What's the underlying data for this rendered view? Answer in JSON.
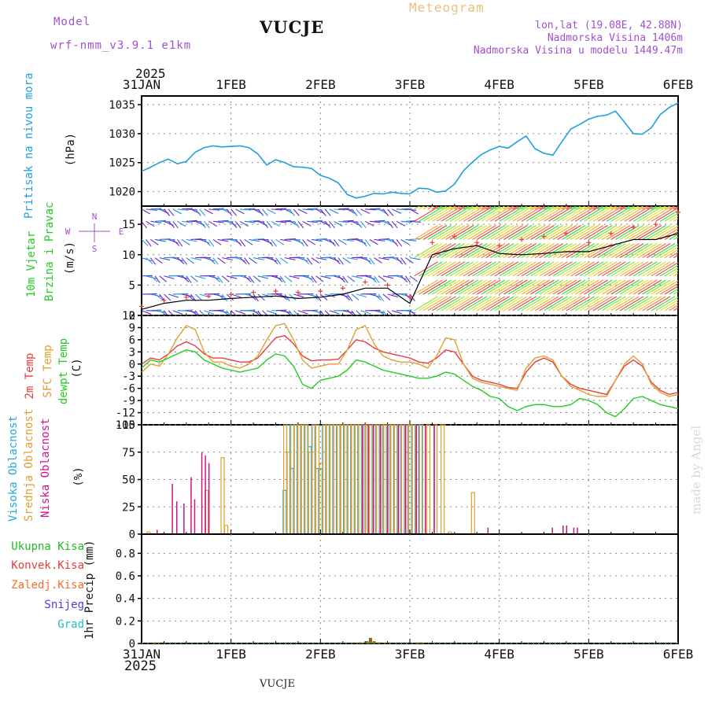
{
  "header": {
    "model_label": "Model",
    "model_name": "wrf-nmm_v3.9.1  e1km",
    "station": "VUCJE",
    "title": "Meteogram",
    "lonlat": "lon,lat (19.08E, 42.88N)",
    "altitude": "Nadmorska Visina 1406m",
    "model_altitude": "Nadmorska Visina u modelu 1449.47m",
    "year": "2025",
    "footer_station": "VUCJE",
    "watermark": "made by Angel"
  },
  "colors": {
    "pressure": "#1ea0e0",
    "t2m": "#e83c3c",
    "sfc": "#e0a030",
    "dew": "#22cc22",
    "high_cloud": "#22aadd",
    "mid_cloud": "#e0a030",
    "low_cloud": "#cc1488",
    "total_rain": "#22bb22",
    "conv_rain": "#e83c3c",
    "frz_rain": "#f07030",
    "snow": "#4444dd",
    "hail": "#22bbbb",
    "model": "#a050d0"
  },
  "time_axis": {
    "ticks": [
      "31JAN",
      "1FEB",
      "2FEB",
      "3FEB",
      "4FEB",
      "5FEB",
      "6FEB"
    ]
  },
  "chart_data": [
    {
      "type": "line",
      "panel": "pressure",
      "ylabel_lines": [
        "Pritisak na nivou mora"
      ],
      "unit": "(hPa)",
      "ylim": [
        1017.5,
        1036.5
      ],
      "yticks": [
        1020,
        1025,
        1030,
        1035
      ],
      "grid": true,
      "x": [
        0,
        0.1,
        0.2,
        0.3,
        0.4,
        0.5,
        0.6,
        0.7,
        0.8,
        0.9,
        1,
        1.1,
        1.2,
        1.3,
        1.4,
        1.5,
        1.6,
        1.7,
        1.8,
        1.9,
        2,
        2.1,
        2.2,
        2.3,
        2.4,
        2.5,
        2.6,
        2.7,
        2.8,
        2.9,
        3,
        3.1,
        3.2,
        3.3,
        3.4,
        3.5,
        3.6,
        3.7,
        3.8,
        3.9,
        4,
        4.1,
        4.2,
        4.3,
        4.4,
        4.5,
        4.6,
        4.7,
        4.8,
        4.9,
        5,
        5.1,
        5.2,
        5.3,
        5.4,
        5.5,
        5.6,
        5.7,
        5.8,
        5.9,
        6
      ],
      "series": [
        {
          "name": "Pritisak na nivou mora",
          "values": [
            1023.5,
            1024.2,
            1025.0,
            1025.6,
            1024.8,
            1025.2,
            1026.8,
            1027.6,
            1027.9,
            1027.7,
            1027.8,
            1027.9,
            1027.6,
            1026.5,
            1024.6,
            1025.5,
            1025.0,
            1024.3,
            1024.2,
            1024.0,
            1022.8,
            1022.3,
            1021.5,
            1019.5,
            1018.9,
            1019.2,
            1019.7,
            1019.6,
            1019.9,
            1019.7,
            1019.6,
            1020.6,
            1020.5,
            1019.9,
            1020.1,
            1021.3,
            1023.6,
            1025.1,
            1026.4,
            1027.2,
            1027.8,
            1027.5,
            1028.6,
            1029.6,
            1027.4,
            1026.6,
            1026.3,
            1028.6,
            1030.8,
            1031.6,
            1032.5,
            1033.0,
            1033.2,
            1033.9,
            1032.0,
            1030.0,
            1029.9,
            1031.0,
            1033.3,
            1034.5,
            1035.3
          ]
        }
      ]
    },
    {
      "type": "scatter",
      "panel": "wind",
      "ylabel_lines": [
        "10m Vjetar",
        "Brzina i Pravac"
      ],
      "unit": "(m/s)",
      "compass": [
        "N",
        "E",
        "S",
        "W"
      ],
      "ylim": [
        0,
        18
      ],
      "yticks": [
        0,
        5,
        10,
        15
      ],
      "grid": true,
      "x": [
        0,
        0.25,
        0.5,
        0.75,
        1,
        1.25,
        1.5,
        1.75,
        2,
        2.25,
        2.5,
        2.75,
        3,
        3.25,
        3.5,
        3.75,
        4,
        4.25,
        4.5,
        4.75,
        5,
        5.25,
        5.5,
        5.75,
        6
      ],
      "series": [
        {
          "name": "Brzina",
          "values": [
            1.0,
            2.0,
            2.5,
            2.5,
            2.8,
            3.0,
            3.2,
            2.8,
            3.0,
            3.5,
            4.5,
            4.5,
            2.0,
            10.0,
            11.0,
            11.5,
            10.2,
            10.0,
            10.2,
            10.5,
            10.5,
            11.5,
            12.5,
            12.5,
            13.5
          ]
        },
        {
          "name": "Udari",
          "values": [
            1.5,
            2.5,
            3.0,
            3.2,
            3.5,
            3.8,
            4.0,
            3.8,
            4.0,
            4.5,
            5.5,
            5.0,
            3.0,
            12.0,
            13.0,
            12.0,
            11.5,
            12.5,
            13.0,
            13.5,
            12.0,
            13.5,
            14.5,
            15.0,
            17.0
          ]
        }
      ]
    },
    {
      "type": "line",
      "panel": "temperature",
      "ylabel_lines": [
        "2m Temp",
        "SFC Temp",
        "dewpt Temp"
      ],
      "unit": "(C)",
      "ylim": [
        -15,
        12
      ],
      "yticks": [
        -15,
        -12,
        -9,
        -6,
        -3,
        0,
        3,
        6,
        9,
        12
      ],
      "grid": true,
      "x": [
        0,
        0.1,
        0.2,
        0.3,
        0.4,
        0.5,
        0.6,
        0.7,
        0.8,
        0.9,
        1,
        1.1,
        1.2,
        1.3,
        1.4,
        1.5,
        1.6,
        1.7,
        1.8,
        1.9,
        2,
        2.1,
        2.2,
        2.3,
        2.4,
        2.5,
        2.6,
        2.7,
        2.8,
        2.9,
        3,
        3.1,
        3.2,
        3.3,
        3.4,
        3.5,
        3.6,
        3.7,
        3.8,
        3.9,
        4,
        4.1,
        4.2,
        4.3,
        4.4,
        4.5,
        4.6,
        4.7,
        4.8,
        4.9,
        5,
        5.1,
        5.2,
        5.3,
        5.4,
        5.5,
        5.6,
        5.7,
        5.8,
        5.9,
        6
      ],
      "series": [
        {
          "name": "2m Temp",
          "values": [
            0.0,
            1.5,
            1.0,
            2.5,
            4.5,
            5.5,
            4.5,
            2.5,
            1.5,
            1.5,
            1.0,
            0.5,
            0.5,
            1.5,
            4.0,
            6.5,
            7.0,
            5.0,
            2.0,
            0.8,
            1.0,
            1.0,
            1.2,
            3.5,
            6.0,
            5.5,
            4.0,
            3.0,
            2.5,
            2.0,
            1.5,
            0.5,
            0.2,
            1.5,
            3.5,
            3.0,
            0.0,
            -3.0,
            -4.0,
            -4.5,
            -5.0,
            -5.8,
            -6.0,
            -2.0,
            0.5,
            1.5,
            0.5,
            -3.0,
            -5.0,
            -6.0,
            -6.5,
            -7.0,
            -7.5,
            -4.0,
            -0.5,
            1.0,
            -0.5,
            -4.5,
            -6.5,
            -7.5,
            -7.0
          ]
        },
        {
          "name": "SFC Temp",
          "values": [
            -2.0,
            0.0,
            -0.5,
            2.5,
            6.5,
            9.5,
            8.5,
            3.0,
            0.5,
            0.5,
            -0.5,
            -1.0,
            0.0,
            2.0,
            6.0,
            9.5,
            10.0,
            6.0,
            1.0,
            -1.0,
            -0.5,
            0.0,
            0.0,
            3.5,
            8.5,
            9.5,
            5.0,
            2.0,
            1.0,
            0.5,
            0.5,
            0.0,
            -1.0,
            2.0,
            6.5,
            6.0,
            0.0,
            -3.5,
            -4.5,
            -5.0,
            -5.5,
            -6.0,
            -6.5,
            -1.0,
            1.5,
            2.0,
            1.0,
            -3.0,
            -5.5,
            -6.5,
            -7.5,
            -8.0,
            -8.0,
            -4.0,
            0.0,
            2.0,
            0.0,
            -5.0,
            -7.0,
            -8.0,
            -7.5
          ]
        },
        {
          "name": "dewpt Temp",
          "values": [
            -1.0,
            1.0,
            0.5,
            1.5,
            2.5,
            3.5,
            3.0,
            1.0,
            0.0,
            -1.0,
            -1.5,
            -2.0,
            -1.5,
            -1.0,
            1.0,
            2.5,
            2.0,
            -0.5,
            -5.0,
            -6.0,
            -4.0,
            -3.5,
            -3.0,
            -1.5,
            1.0,
            0.5,
            -0.5,
            -1.5,
            -2.0,
            -2.5,
            -3.0,
            -3.5,
            -3.5,
            -3.0,
            -2.0,
            -2.5,
            -4.0,
            -5.5,
            -6.5,
            -8.0,
            -8.5,
            -10.5,
            -11.5,
            -10.5,
            -10.0,
            -10.0,
            -10.5,
            -10.5,
            -10.0,
            -8.5,
            -9.0,
            -10.0,
            -12.0,
            -13.0,
            -11.0,
            -8.5,
            -8.0,
            -9.0,
            -10.0,
            -10.5,
            -11.0
          ]
        }
      ]
    },
    {
      "type": "bar",
      "panel": "cloud",
      "ylabel_lines": [
        "Visoka Oblacnost",
        "Srednja Oblacnost",
        "Niska Oblacnost"
      ],
      "unit": "(%)",
      "ylim": [
        0,
        100
      ],
      "yticks": [
        0,
        25,
        50,
        75,
        100
      ],
      "grid": true,
      "series": [
        {
          "name": "Visoka Oblacnost",
          "x": [
            1.6,
            1.64,
            1.68,
            1.72,
            1.76,
            1.8,
            1.84,
            1.88,
            1.92,
            1.96,
            2.0,
            2.04,
            2.08,
            2.12,
            2.16,
            2.2,
            2.24,
            2.28,
            2.32,
            2.36,
            2.4,
            2.44,
            2.48,
            2.52,
            2.56,
            2.6,
            2.64,
            2.68,
            2.72,
            2.76,
            2.8,
            2.84,
            2.88,
            2.92,
            2.96,
            3.0,
            3.04,
            3.08,
            3.12
          ],
          "values": [
            40,
            100,
            60,
            100,
            100,
            100,
            100,
            80,
            100,
            60,
            60,
            100,
            100,
            100,
            100,
            100,
            100,
            100,
            100,
            100,
            100,
            100,
            100,
            100,
            100,
            100,
            100,
            100,
            100,
            100,
            100,
            100,
            100,
            100,
            100,
            100,
            100,
            100,
            100
          ]
        },
        {
          "name": "Srednja Oblacnost",
          "x": [
            0.05,
            0.7,
            0.88,
            0.92,
            1.58,
            1.62,
            1.66,
            1.7,
            1.74,
            1.78,
            1.82,
            1.86,
            1.9,
            1.94,
            1.98,
            2.02,
            2.06,
            2.1,
            2.14,
            2.18,
            2.22,
            2.26,
            2.3,
            2.34,
            2.38,
            2.42,
            2.46,
            2.5,
            2.54,
            2.58,
            2.62,
            2.66,
            2.7,
            2.74,
            2.78,
            2.82,
            2.86,
            2.9,
            2.94,
            2.98,
            3.02,
            3.1,
            3.18,
            3.26,
            3.34,
            3.42,
            3.68
          ],
          "values": [
            2,
            40,
            70,
            8,
            100,
            75,
            100,
            100,
            100,
            100,
            100,
            75,
            100,
            100,
            65,
            100,
            100,
            100,
            100,
            100,
            100,
            100,
            100,
            100,
            100,
            100,
            100,
            100,
            100,
            100,
            100,
            100,
            100,
            100,
            100,
            100,
            100,
            100,
            100,
            100,
            100,
            100,
            100,
            100,
            100,
            2,
            38
          ]
        },
        {
          "name": "Niska Oblacnost",
          "x": [
            0.2,
            0.37,
            0.42,
            0.5,
            0.58,
            0.62,
            0.7,
            0.74,
            0.78,
            2.5,
            2.56,
            2.62,
            2.7,
            2.78,
            2.9,
            2.98,
            3.1,
            3.2,
            3.3,
            3.9,
            4.62,
            4.74,
            4.78,
            4.86,
            4.9
          ],
          "values": [
            4,
            46,
            30,
            28,
            52,
            32,
            75,
            72,
            65,
            100,
            100,
            100,
            100,
            100,
            100,
            100,
            100,
            100,
            100,
            6,
            6,
            8,
            8,
            6,
            6
          ]
        }
      ]
    },
    {
      "type": "bar",
      "panel": "precip",
      "ylabel_lines": [
        "1hr Precip (mm)"
      ],
      "legend": [
        "Ukupna Kisa",
        "Konvek.Kisa",
        "Zaledj.Kisa",
        "Snijeg",
        "Grad"
      ],
      "ylim": [
        0,
        0.97
      ],
      "yticks": [
        0,
        0.2,
        0.4,
        0.6,
        0.8
      ],
      "grid": true,
      "series": [
        {
          "name": "Ukupna Kisa",
          "x": [
            0.15,
            2.45,
            2.52,
            2.56,
            2.6,
            2.65,
            3.08,
            3.12
          ],
          "values": [
            0.01,
            0.01,
            0.02,
            0.05,
            0.02,
            0.01,
            0.01,
            0.01
          ]
        }
      ]
    }
  ]
}
